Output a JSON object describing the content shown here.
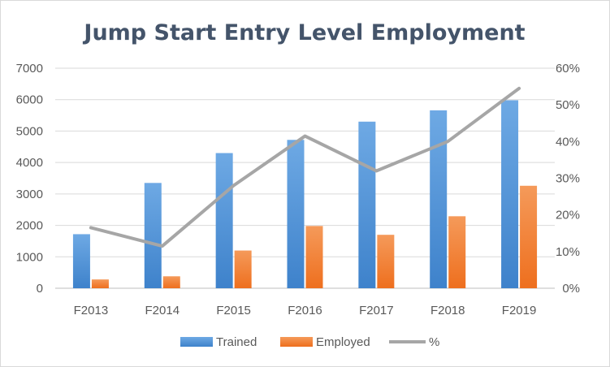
{
  "chart_data": {
    "type": "bar",
    "title": "Jump Start Entry Level Employment",
    "categories": [
      "F2013",
      "F2014",
      "F2015",
      "F2016",
      "F2017",
      "F2018",
      "F2019"
    ],
    "series": [
      {
        "name": "Trained",
        "type": "bar",
        "axis": "left",
        "color": "#4a8fd6",
        "values": [
          1720,
          3350,
          4300,
          4720,
          5300,
          5660,
          5980
        ]
      },
      {
        "name": "Employed",
        "type": "bar",
        "axis": "left",
        "color": "#f07a2c",
        "values": [
          280,
          380,
          1200,
          1980,
          1700,
          2290,
          3260
        ]
      },
      {
        "name": "%",
        "type": "line",
        "axis": "right",
        "color": "#a6a6a6",
        "values": [
          16.5,
          11.5,
          28,
          41.5,
          32,
          40,
          54.5
        ]
      }
    ],
    "y_left": {
      "min": 0,
      "max": 7000,
      "ticks": [
        0,
        1000,
        2000,
        3000,
        4000,
        5000,
        6000,
        7000
      ]
    },
    "y_right": {
      "min": 0,
      "max": 60,
      "ticks": [
        "0%",
        "10%",
        "20%",
        "30%",
        "40%",
        "50%",
        "60%"
      ]
    },
    "grid": true,
    "legend_position": "bottom"
  }
}
